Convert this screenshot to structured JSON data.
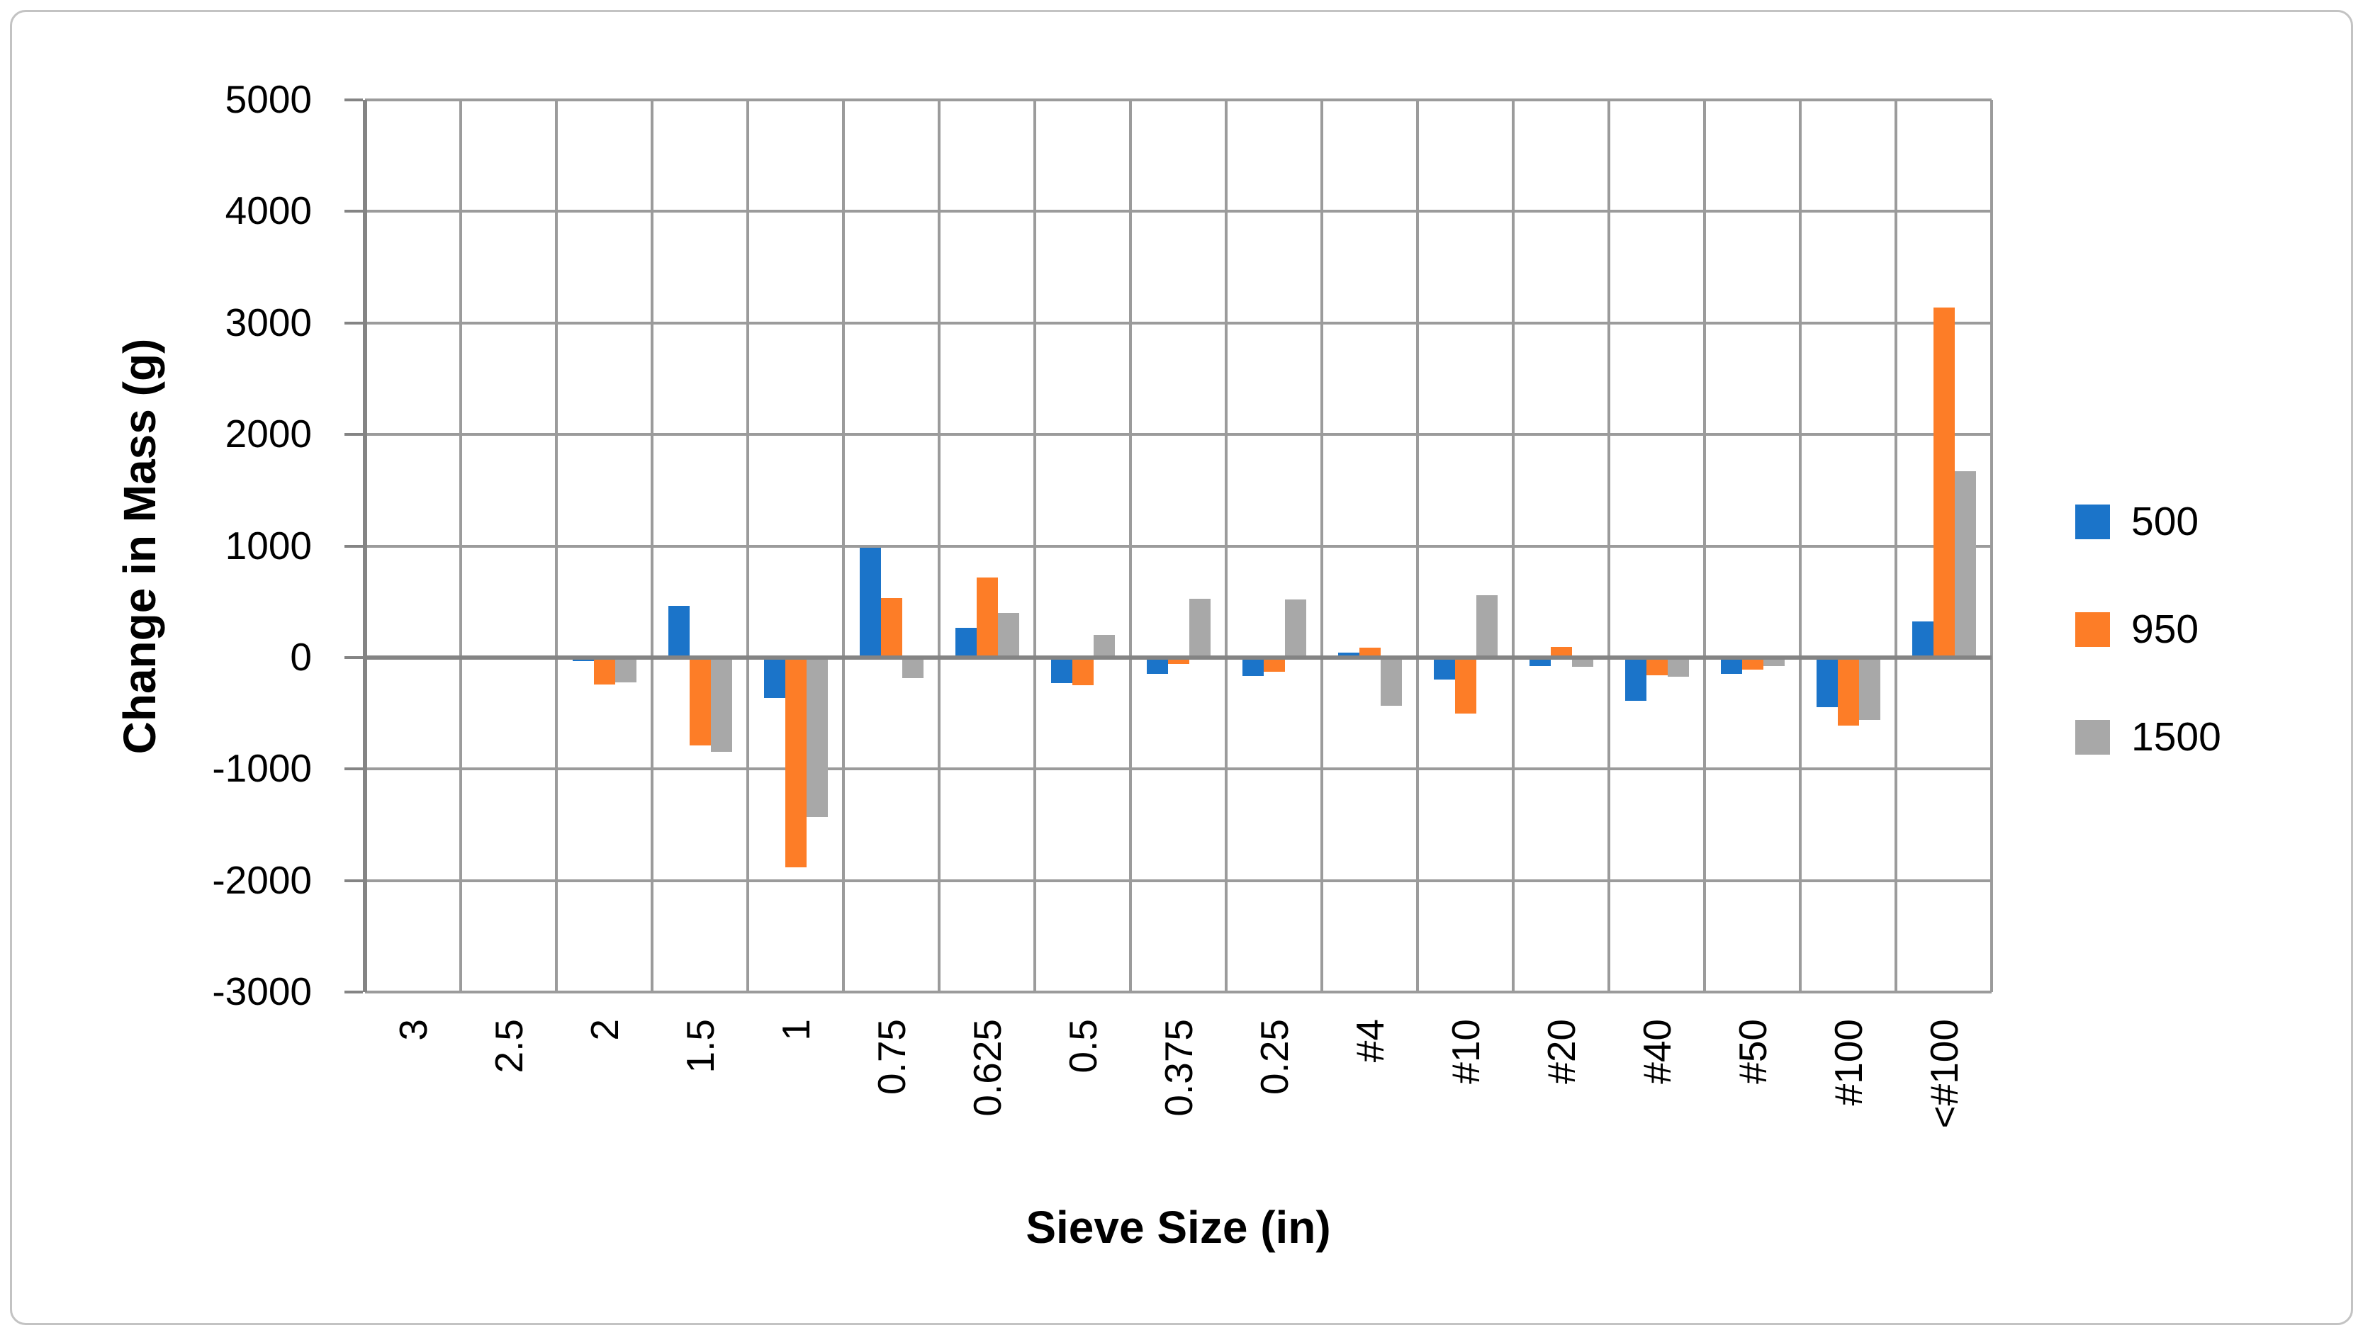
{
  "chart_data": {
    "type": "bar",
    "title": "",
    "xlabel": "Sieve Size (in)",
    "ylabel": "Change in Mass (g)",
    "categories": [
      "3",
      "2.5",
      "2",
      "1.5",
      "1",
      "0.75",
      "0.625",
      "0.5",
      "0.375",
      "0.25",
      "#4",
      "#10",
      "#20",
      "#40",
      "#50",
      "#100",
      "<#100"
    ],
    "series": [
      {
        "name": "500",
        "color": "#1b74c9",
        "values": [
          0,
          0,
          -35,
          460,
          -360,
          985,
          265,
          -230,
          -150,
          -165,
          45,
          -200,
          -80,
          -390,
          -150,
          -445,
          325
        ]
      },
      {
        "name": "950",
        "color": "#fd7d27",
        "values": [
          0,
          0,
          -240,
          -790,
          -1880,
          535,
          715,
          -250,
          -60,
          -130,
          85,
          -505,
          95,
          -160,
          -110,
          -610,
          3140
        ]
      },
      {
        "name": "1500",
        "color": "#a8a8a8",
        "values": [
          0,
          0,
          -225,
          -845,
          -1430,
          -185,
          400,
          200,
          525,
          520,
          -430,
          560,
          -85,
          -170,
          -75,
          -560,
          1670
        ]
      }
    ],
    "ylim": [
      -3000,
      5000
    ],
    "ytick_interval": 1000,
    "ytick_labels": [
      "5000",
      "4000",
      "3000",
      "2000",
      "1000",
      "0",
      "-1000",
      "-2000",
      "-3000"
    ],
    "grid": true,
    "legend_position": "right",
    "bar_orientation": "vertical"
  },
  "colors": {
    "gridline": "#9b9b9b",
    "axis_line": "#848484",
    "frame_border": "#c3c3c3",
    "background": "#ffffff",
    "text": "#000000"
  }
}
